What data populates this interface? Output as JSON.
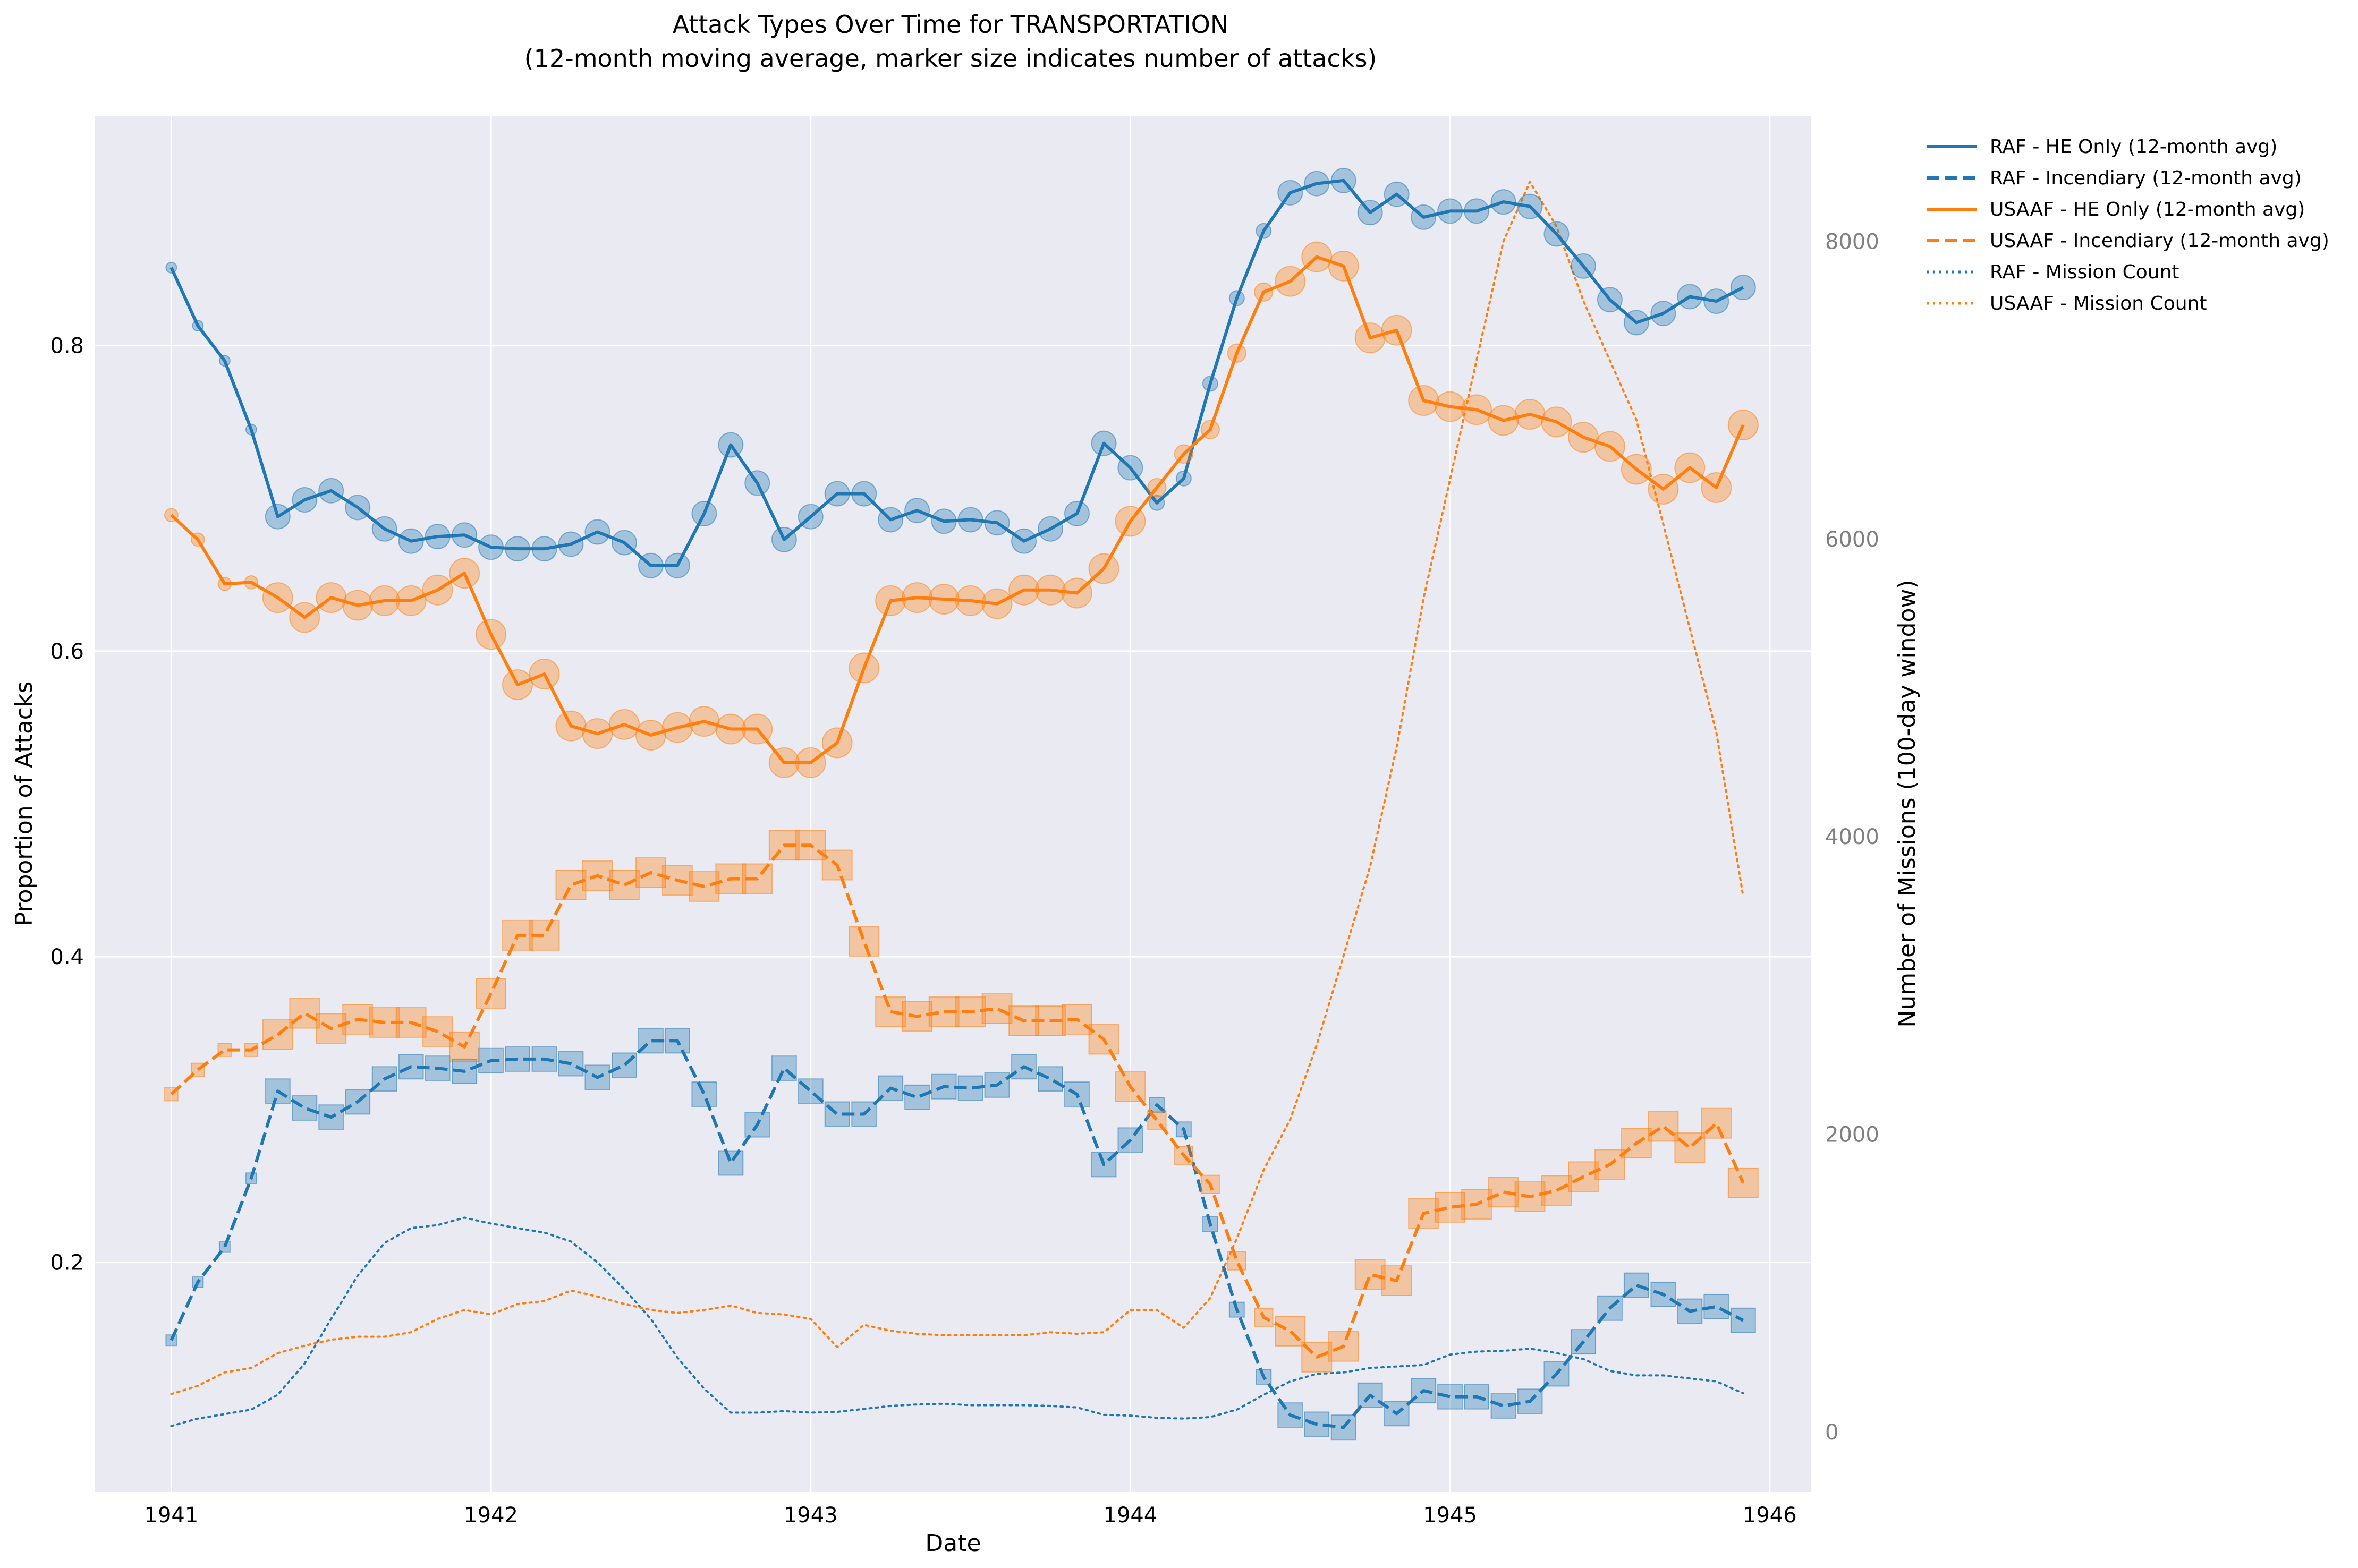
{
  "chart_data": {
    "type": "line",
    "title": "Attack Types Over Time for TRANSPORTATION",
    "subtitle": "(12-month moving average, marker size indicates number of attacks)",
    "xlabel": "Date",
    "ylabel": "Proportion of Attacks",
    "ylabel_right": "Number of Missions (100-day window)",
    "x_ticks": [
      "1941",
      "1942",
      "1943",
      "1944",
      "1945",
      "1946"
    ],
    "y_ticks": [
      "0.2",
      "0.4",
      "0.6",
      "0.8"
    ],
    "y_ticks_right": [
      "0",
      "2000",
      "4000",
      "6000",
      "8000"
    ],
    "xlim": [
      1940.76,
      1946.13
    ],
    "ylim": [
      0.05,
      0.95
    ],
    "ylim_right": [
      -400,
      8840
    ],
    "grid": true,
    "legend_position": "outside-top-right",
    "colors": {
      "raf": "#1f77b4",
      "usaaf": "#ff7f0e",
      "background": "#eaeaf2"
    },
    "x": [
      1941.0,
      1941.083,
      1941.167,
      1941.25,
      1941.333,
      1941.417,
      1941.5,
      1941.583,
      1941.667,
      1941.75,
      1941.833,
      1941.917,
      1942.0,
      1942.083,
      1942.167,
      1942.25,
      1942.333,
      1942.417,
      1942.5,
      1942.583,
      1942.667,
      1942.75,
      1942.833,
      1942.917,
      1943.0,
      1943.083,
      1943.167,
      1943.25,
      1943.333,
      1943.417,
      1943.5,
      1943.583,
      1943.667,
      1943.75,
      1943.833,
      1943.917,
      1944.0,
      1944.083,
      1944.167,
      1944.25,
      1944.333,
      1944.417,
      1944.5,
      1944.583,
      1944.667,
      1944.75,
      1944.833,
      1944.917,
      1945.0,
      1945.083,
      1945.167,
      1945.25,
      1945.333,
      1945.417,
      1945.5,
      1945.583,
      1945.667,
      1945.75,
      1945.833,
      1945.917
    ],
    "series": [
      {
        "name": "RAF - HE Only (12-month avg)",
        "color": "#1f77b4",
        "style": "solid",
        "axis": "left",
        "marker": "circle",
        "values": [
          0.851,
          0.813,
          0.79,
          0.745,
          0.688,
          0.699,
          0.705,
          0.694,
          0.68,
          0.672,
          0.675,
          0.676,
          0.668,
          0.667,
          0.667,
          0.67,
          0.678,
          0.671,
          0.656,
          0.656,
          0.69,
          0.735,
          0.71,
          0.673,
          0.688,
          0.703,
          0.703,
          0.686,
          0.692,
          0.685,
          0.686,
          0.684,
          0.672,
          0.68,
          0.69,
          0.736,
          0.72,
          0.697,
          0.713,
          0.775,
          0.831,
          0.875,
          0.9,
          0.906,
          0.908,
          0.887,
          0.899,
          0.884,
          0.888,
          0.888,
          0.894,
          0.891,
          0.873,
          0.852,
          0.83,
          0.815,
          0.821,
          0.832,
          0.829,
          0.838
        ]
      },
      {
        "name": "RAF - Incendiary (12-month avg)",
        "color": "#1f77b4",
        "style": "dashed",
        "axis": "left",
        "marker": "square",
        "values": [
          0.149,
          0.187,
          0.21,
          0.255,
          0.312,
          0.301,
          0.295,
          0.305,
          0.32,
          0.328,
          0.327,
          0.325,
          0.332,
          0.333,
          0.333,
          0.33,
          0.321,
          0.329,
          0.345,
          0.345,
          0.31,
          0.265,
          0.29,
          0.327,
          0.312,
          0.297,
          0.297,
          0.314,
          0.308,
          0.315,
          0.314,
          0.316,
          0.328,
          0.32,
          0.31,
          0.264,
          0.28,
          0.303,
          0.287,
          0.225,
          0.169,
          0.125,
          0.1,
          0.094,
          0.092,
          0.113,
          0.101,
          0.116,
          0.112,
          0.112,
          0.106,
          0.109,
          0.127,
          0.148,
          0.17,
          0.185,
          0.179,
          0.168,
          0.171,
          0.162
        ]
      },
      {
        "name": "USAAF - HE Only (12-month avg)",
        "color": "#ff7f0e",
        "style": "solid",
        "axis": "left",
        "marker": "circle",
        "values": [
          0.689,
          0.673,
          0.644,
          0.645,
          0.635,
          0.622,
          0.635,
          0.63,
          0.633,
          0.633,
          0.64,
          0.651,
          0.611,
          0.578,
          0.585,
          0.551,
          0.546,
          0.552,
          0.545,
          0.55,
          0.554,
          0.549,
          0.549,
          0.527,
          0.527,
          0.54,
          0.589,
          0.633,
          0.635,
          0.634,
          0.633,
          0.631,
          0.64,
          0.64,
          0.638,
          0.654,
          0.685,
          0.707,
          0.729,
          0.745,
          0.795,
          0.835,
          0.842,
          0.858,
          0.852,
          0.805,
          0.81,
          0.764,
          0.76,
          0.758,
          0.751,
          0.755,
          0.75,
          0.74,
          0.734,
          0.719,
          0.706,
          0.72,
          0.707,
          0.748
        ]
      },
      {
        "name": "USAAF - Incendiary (12-month avg)",
        "color": "#ff7f0e",
        "style": "dashed",
        "axis": "left",
        "marker": "square",
        "values": [
          0.31,
          0.326,
          0.339,
          0.339,
          0.349,
          0.363,
          0.353,
          0.359,
          0.357,
          0.357,
          0.351,
          0.341,
          0.376,
          0.414,
          0.414,
          0.447,
          0.453,
          0.447,
          0.455,
          0.45,
          0.446,
          0.451,
          0.451,
          0.473,
          0.473,
          0.46,
          0.41,
          0.364,
          0.361,
          0.364,
          0.364,
          0.366,
          0.358,
          0.358,
          0.359,
          0.346,
          0.315,
          0.293,
          0.27,
          0.251,
          0.201,
          0.164,
          0.155,
          0.138,
          0.145,
          0.192,
          0.188,
          0.232,
          0.236,
          0.238,
          0.246,
          0.243,
          0.247,
          0.256,
          0.264,
          0.278,
          0.289,
          0.275,
          0.291,
          0.252
        ]
      },
      {
        "name": "RAF - Mission Count",
        "color": "#1f77b4",
        "style": "dotted",
        "axis": "right",
        "marker": "none",
        "values": [
          40,
          90,
          120,
          150,
          250,
          460,
          760,
          1050,
          1270,
          1370,
          1390,
          1440,
          1400,
          1370,
          1340,
          1280,
          1140,
          960,
          760,
          500,
          290,
          130,
          130,
          140,
          130,
          135,
          155,
          175,
          185,
          190,
          180,
          180,
          180,
          175,
          165,
          115,
          110,
          95,
          90,
          100,
          150,
          250,
          340,
          390,
          400,
          430,
          440,
          450,
          520,
          540,
          545,
          560,
          530,
          490,
          410,
          380,
          380,
          360,
          340,
          260
        ]
      },
      {
        "name": "USAAF - Mission Count",
        "color": "#ff7f0e",
        "style": "dotted",
        "axis": "right",
        "marker": "none",
        "values": [
          255,
          310,
          400,
          430,
          530,
          580,
          620,
          640,
          640,
          670,
          760,
          820,
          790,
          860,
          880,
          950,
          910,
          860,
          820,
          800,
          820,
          850,
          800,
          790,
          760,
          570,
          720,
          680,
          660,
          650,
          650,
          650,
          650,
          670,
          660,
          670,
          820,
          820,
          700,
          900,
          1300,
          1760,
          2100,
          2600,
          3200,
          3800,
          4600,
          5600,
          6400,
          7200,
          8000,
          8400,
          8100,
          7600,
          7200,
          6800,
          6100,
          5400,
          4700,
          3600
        ]
      }
    ]
  }
}
